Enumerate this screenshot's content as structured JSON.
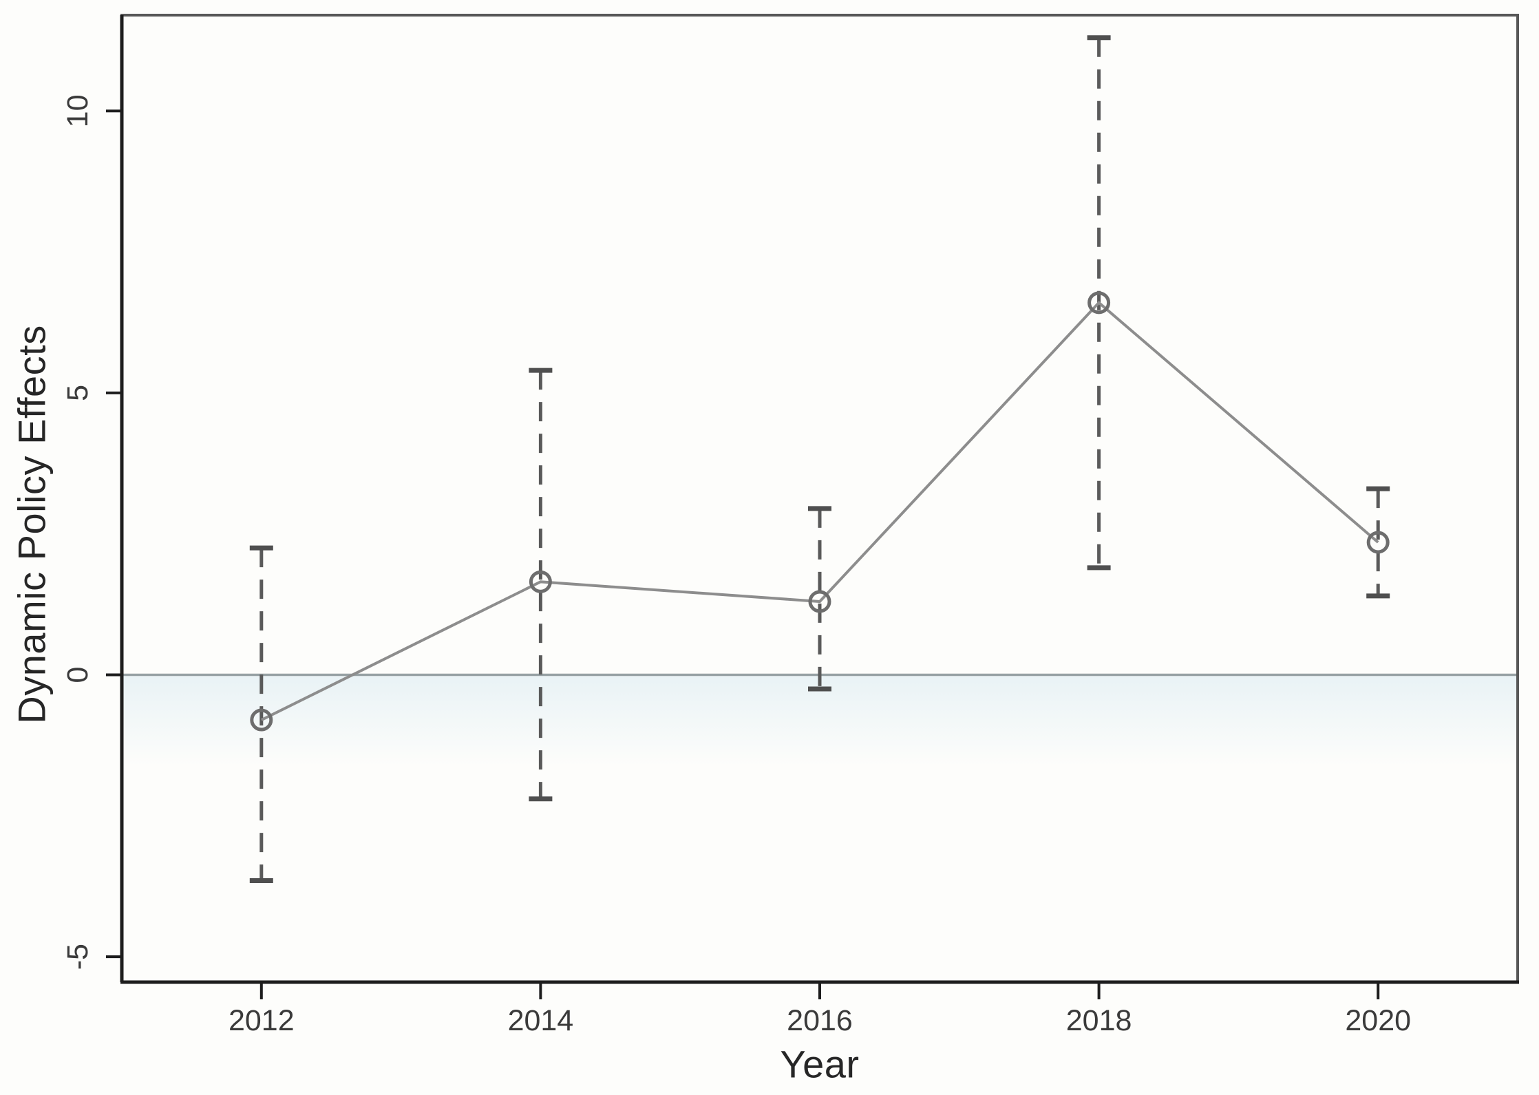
{
  "figure": {
    "background_color": "#fdfdfb",
    "title": ""
  },
  "chart_data": {
    "type": "line",
    "subtype": "point-estimates-with-error-bars",
    "title": "",
    "xlabel": "Year",
    "ylabel": "Dynamic Policy Effects",
    "x": [
      2012,
      2014,
      2016,
      2018,
      2020
    ],
    "x_ticks": [
      "2012",
      "2014",
      "2016",
      "2018",
      "2020"
    ],
    "y_ticks": [
      "-5",
      "0",
      "5",
      "10"
    ],
    "y_tick_values": [
      -5,
      0,
      5,
      10
    ],
    "xlim": [
      2011,
      2021
    ],
    "ylim": [
      -5.45,
      11.7
    ],
    "series": [
      {
        "name": "point_estimate",
        "values": [
          -0.8,
          1.65,
          1.3,
          6.6,
          2.35
        ]
      },
      {
        "name": "ci_lower",
        "values": [
          -3.65,
          -2.2,
          -0.25,
          1.9,
          1.4
        ]
      },
      {
        "name": "ci_upper",
        "values": [
          2.25,
          5.4,
          2.95,
          11.3,
          3.3
        ]
      }
    ],
    "reference_line_y": 0,
    "grid": "off",
    "legend": "none",
    "marker": "open-circle",
    "error_bar_style": "dashed-with-caps",
    "colors": {
      "connecting_line": "#8d8d8d",
      "marker_stroke": "#6d6d6d",
      "whisker": "#5a5a5a",
      "whisker_cap": "#4f4f4f",
      "axis_box": "#575757",
      "axis_dark": "#1d1d1d",
      "zero_line": "#97a1a4",
      "tick_label": "#3a3a3a",
      "axis_title": "#262626",
      "below_zero_tint": "#d5e8f0"
    }
  }
}
